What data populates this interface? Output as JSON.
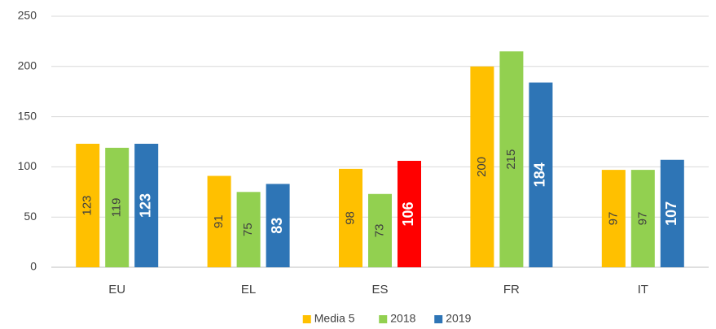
{
  "chart_data": {
    "type": "bar",
    "categories": [
      "EU",
      "EL",
      "ES",
      "FR",
      "IT"
    ],
    "series": [
      {
        "name": "Media 5",
        "color": "#FFC000",
        "values": [
          123,
          91,
          98,
          200,
          97
        ]
      },
      {
        "name": "2018",
        "color": "#92D050",
        "values": [
          119,
          75,
          73,
          215,
          97
        ]
      },
      {
        "name": "2019",
        "color": "#2E75B6",
        "values": [
          123,
          83,
          106,
          184,
          107
        ],
        "point_colors": [
          "#2E75B6",
          "#2E75B6",
          "#FF0000",
          "#2E75B6",
          "#2E75B6"
        ]
      }
    ],
    "ylim": [
      0,
      250
    ],
    "yticks": [
      0,
      50,
      100,
      150,
      200,
      250
    ],
    "grid": true,
    "legend": "bottom"
  }
}
